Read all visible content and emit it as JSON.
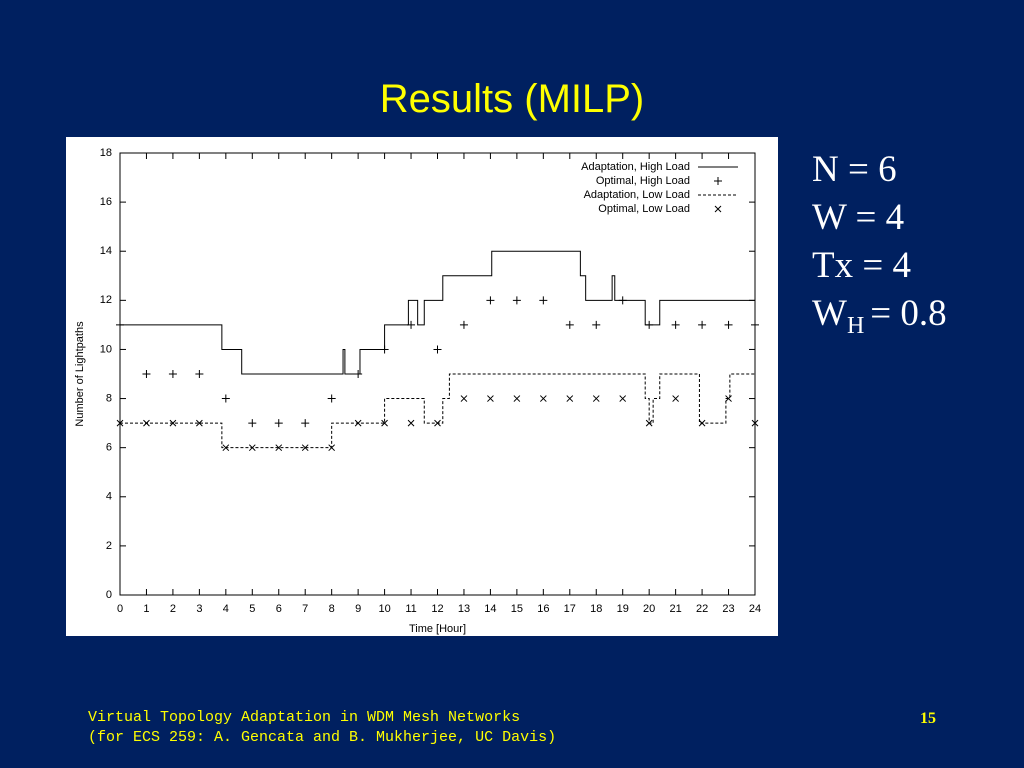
{
  "slide": {
    "title": "Results (MILP)",
    "params": [
      "N = 6",
      "W = 4",
      "Tx = 4"
    ],
    "param_wh": {
      "main": "W",
      "sub": "H",
      "rest": "= 0.8"
    },
    "footer": [
      "Virtual Topology Adaptation in WDM Mesh Networks",
      "(for ECS 259: A. Gencata and B. Mukherjee, UC Davis)"
    ],
    "page_number": "15"
  },
  "chart_data": {
    "type": "line",
    "x_label": "Time [Hour]",
    "y_label": "Number of Lightpaths",
    "xlim": [
      0,
      24
    ],
    "ylim": [
      0,
      18
    ],
    "xticks": [
      0,
      1,
      2,
      3,
      4,
      5,
      6,
      7,
      8,
      9,
      10,
      11,
      12,
      13,
      14,
      15,
      16,
      17,
      18,
      19,
      20,
      21,
      22,
      23,
      24
    ],
    "yticks": [
      0,
      2,
      4,
      6,
      8,
      10,
      12,
      14,
      16,
      18
    ],
    "legend": "upper right",
    "series": [
      {
        "name": "Adaptation, High Load",
        "color": "#000000",
        "style": "solid",
        "x": [
          0,
          3.85,
          3.85,
          4.6,
          4.6,
          8.43,
          8.43,
          8.5,
          8.5,
          9.07,
          9.07,
          10,
          10,
          10.9,
          10.9,
          11.25,
          11.25,
          11.5,
          11.5,
          12.2,
          12.2,
          14.05,
          14.05,
          17.4,
          17.4,
          17.6,
          17.6,
          18.6,
          18.6,
          18.7,
          18.7,
          19.85,
          19.85,
          20.4,
          20.4,
          24
        ],
        "values": [
          11,
          11,
          10,
          10,
          9,
          9,
          10,
          10,
          9,
          9,
          10,
          10,
          11,
          11,
          12,
          12,
          11,
          11,
          12,
          12,
          13,
          13,
          14,
          14,
          13,
          13,
          12,
          12,
          13,
          13,
          12,
          12,
          11,
          11,
          12,
          12
        ]
      },
      {
        "name": "Optimal, High Load",
        "color": "#000000",
        "style": "plus",
        "x": [
          0,
          1,
          2,
          3,
          4,
          5,
          6,
          7,
          8,
          9,
          10,
          11,
          12,
          13,
          14,
          15,
          16,
          17,
          18,
          19,
          20,
          21,
          22,
          23,
          24
        ],
        "values": [
          11,
          9,
          9,
          9,
          8,
          7,
          7,
          7,
          8,
          9,
          10,
          11,
          10,
          11,
          12,
          12,
          12,
          11,
          11,
          12,
          11,
          11,
          11,
          11,
          11
        ]
      },
      {
        "name": "Adaptation, Low Load",
        "color": "#000000",
        "style": "dashed",
        "x": [
          0,
          3.85,
          3.85,
          8,
          8,
          10,
          10,
          11.5,
          11.5,
          12.2,
          12.2,
          12.45,
          12.45,
          19.85,
          19.85,
          20,
          20,
          20.15,
          20.15,
          20.4,
          20.4,
          21.9,
          21.9,
          22.9,
          22.9,
          23.05,
          23.05,
          24
        ],
        "values": [
          7,
          7,
          6,
          6,
          7,
          7,
          8,
          8,
          7,
          7,
          8,
          8,
          9,
          9,
          8,
          8,
          7,
          7,
          8,
          8,
          9,
          9,
          7,
          7,
          8,
          8,
          9,
          9
        ]
      },
      {
        "name": "Optimal, Low Load",
        "color": "#000000",
        "style": "cross",
        "x": [
          0,
          1,
          2,
          3,
          4,
          5,
          6,
          7,
          8,
          9,
          10,
          11,
          12,
          13,
          14,
          15,
          16,
          17,
          18,
          19,
          20,
          21,
          22,
          23,
          24
        ],
        "values": [
          7,
          7,
          7,
          7,
          6,
          6,
          6,
          6,
          6,
          7,
          7,
          7,
          7,
          8,
          8,
          8,
          8,
          8,
          8,
          8,
          7,
          8,
          7,
          8,
          7
        ]
      }
    ]
  }
}
